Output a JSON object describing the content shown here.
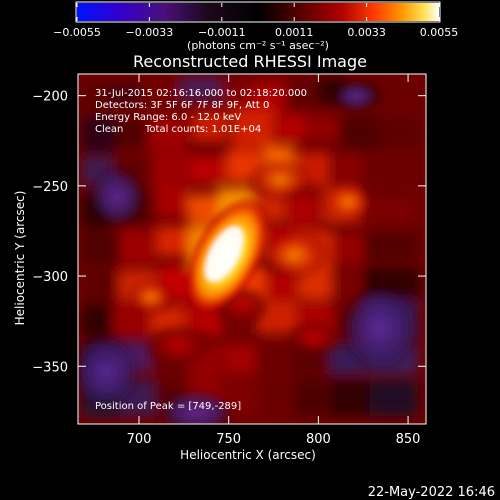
{
  "chart_data": {
    "type": "heatmap",
    "title": "Reconstructed RHESSI Image",
    "xlabel": "Heliocentric X (arcsec)",
    "ylabel": "Heliocentric Y (arcsec)",
    "xlim": [
      666,
      860
    ],
    "ylim": [
      -382,
      -188
    ],
    "xticks": [
      700,
      750,
      800,
      850
    ],
    "yticks": [
      -200,
      -250,
      -300,
      -350
    ],
    "colorbar": {
      "range": [
        -0.0055,
        0.0055
      ],
      "ticks": [
        "-0.0055",
        "-0.0033",
        "-0.0011",
        "0.0011",
        "0.0033",
        "0.0055"
      ],
      "label": "(photons cm⁻² s⁻¹ asec⁻²)"
    },
    "annotations": {
      "time": "31-Jul-2015 02:16:16.000 to 02:18:20.000",
      "detectors": "Detectors: 3F 5F 6F 7F 8F 9F, Att 0",
      "energy": "Energy Range: 6.0 - 12.0 keV",
      "clean": "Clean",
      "counts": "Total counts: 1.01E+04",
      "peak": "Position of Peak = [749,-289]"
    },
    "peak": {
      "x": 749,
      "y": -289
    }
  },
  "footer": {
    "date": "22-May-2022 16:46"
  },
  "colors": {
    "background": "#000000",
    "text": "#ffffff",
    "cmap_low": "#0000ff",
    "cmap_mid": "#000000",
    "cmap_high": "#ffffff"
  }
}
